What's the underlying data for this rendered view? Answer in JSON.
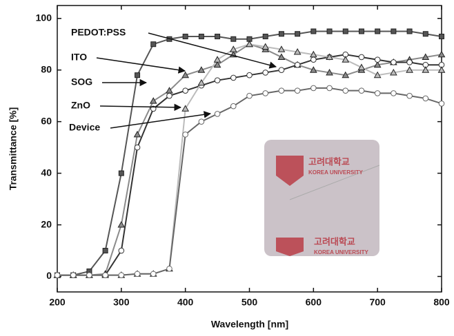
{
  "chart_data": {
    "type": "line",
    "xlabel": "Wavelength [nm]",
    "ylabel": "Transmittance [%]",
    "x": [
      200,
      225,
      250,
      275,
      300,
      325,
      350,
      375,
      400,
      425,
      450,
      475,
      500,
      525,
      550,
      575,
      600,
      625,
      650,
      675,
      700,
      725,
      750,
      775,
      800
    ],
    "series": [
      {
        "name": "PEDOT:PSS",
        "color": "#555555",
        "marker": "square",
        "values": [
          0.5,
          0.5,
          2,
          10,
          40,
          78,
          90,
          92,
          93,
          93,
          93,
          92,
          92,
          93,
          94,
          94,
          95,
          95,
          95,
          95,
          95,
          95,
          95,
          94,
          93
        ]
      },
      {
        "name": "ITO",
        "color": "#8a8a8a",
        "marker": "triangle",
        "values": [
          0.5,
          0.5,
          0.5,
          1,
          20,
          55,
          68,
          72,
          78,
          80,
          82,
          86,
          90,
          88,
          85,
          82,
          80,
          79,
          78,
          80,
          82,
          83,
          84,
          85,
          86
        ]
      },
      {
        "name": "SOG",
        "color": "#333333",
        "marker": "circle",
        "values": [
          0.5,
          0.5,
          0.5,
          0.5,
          10,
          50,
          65,
          70,
          72,
          74,
          76,
          77,
          78,
          79,
          80,
          82,
          84,
          85,
          86,
          85,
          84,
          83,
          83,
          82,
          82
        ]
      },
      {
        "name": "ZnO",
        "color": "#bbbbbb",
        "marker": "triangle",
        "values": [
          0.5,
          0.5,
          0.5,
          0.5,
          0.5,
          1,
          1,
          3,
          65,
          75,
          84,
          88,
          90,
          89,
          88,
          87,
          86,
          85,
          84,
          81,
          78,
          79,
          80,
          80,
          80
        ]
      },
      {
        "name": "Device",
        "color": "#666666",
        "marker": "circle",
        "values": [
          0.5,
          0.5,
          0.5,
          0.5,
          0.5,
          1,
          1,
          3,
          55,
          60,
          63,
          66,
          70,
          71,
          72,
          72,
          73,
          73,
          72,
          72,
          71,
          71,
          70,
          69,
          67
        ]
      }
    ],
    "xlim": [
      200,
      800
    ],
    "xticks": [
      200,
      300,
      400,
      500,
      600,
      700,
      800
    ],
    "ylim": [
      -6,
      105
    ],
    "yticks": [
      0,
      20,
      40,
      60,
      80,
      100
    ],
    "inset_texts": [
      "고려대학교",
      "KOREA UNIVERSITY",
      "고려대학교",
      "KOREA UNIVERSITY"
    ]
  }
}
